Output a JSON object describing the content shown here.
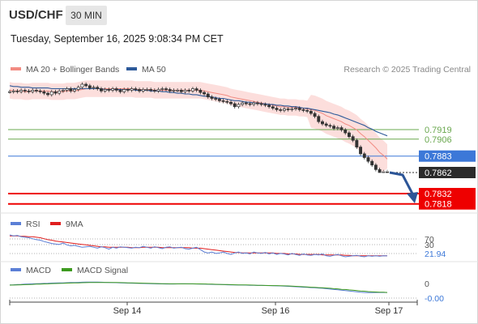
{
  "header": {
    "symbol": "USD/CHF",
    "timeframe": "30 MIN",
    "datetime": "Tuesday, September 16, 2025 9:08:34 PM CET"
  },
  "legend": {
    "bollinger": {
      "label": "MA 20 + Bollinger Bands",
      "color": "#f28b82"
    },
    "ma50": {
      "label": "MA 50",
      "color": "#2d5a9a"
    },
    "credit": "Research © 2025 Trading Central"
  },
  "rsi_legend": {
    "rsi": {
      "label": "RSI",
      "color": "#5b7fd6"
    },
    "ma9": {
      "label": "9MA",
      "color": "#e01e1e"
    }
  },
  "macd_legend": {
    "macd": {
      "label": "MACD",
      "color": "#5b7fd6"
    },
    "signal": {
      "label": "MACD Signal",
      "color": "#3d9a1f"
    }
  },
  "chart_data": [
    {
      "type": "candlestick",
      "panel": "price",
      "title": "USD/CHF 30 MIN",
      "ylim": [
        0.7812,
        0.7945
      ],
      "last_price": 0.7862,
      "levels": [
        {
          "value": 0.7919,
          "label": "0.7919",
          "style": "resistance",
          "color": "#6aa84f"
        },
        {
          "value": 0.7906,
          "label": "0.7906",
          "style": "resistance",
          "color": "#6aa84f"
        },
        {
          "value": 0.7883,
          "label": "0.7883",
          "style": "pivot",
          "color": "#3c78d8"
        },
        {
          "value": 0.7832,
          "label": "0.7832",
          "style": "support",
          "color": "#ee0000"
        },
        {
          "value": 0.7818,
          "label": "0.7818",
          "style": "support",
          "color": "#ee0000"
        }
      ],
      "projection": {
        "from": 0.7862,
        "to": 0.7832,
        "direction": "down",
        "color": "#2c5597"
      },
      "x_ticks": [
        "Sep 14",
        "Sep 16",
        "Sep 17"
      ],
      "close": [
        0.797,
        0.7971,
        0.797,
        0.7972,
        0.7971,
        0.797,
        0.7972,
        0.7971,
        0.797,
        0.7968,
        0.7966,
        0.797,
        0.7968,
        0.7971,
        0.7972,
        0.7974,
        0.7971,
        0.7973,
        0.7976,
        0.798,
        0.7978,
        0.7975,
        0.7976,
        0.7974,
        0.7971,
        0.7973,
        0.7972,
        0.7974,
        0.7972,
        0.797,
        0.7973,
        0.7972,
        0.7974,
        0.7973,
        0.7971,
        0.7973,
        0.7973,
        0.7972,
        0.7971,
        0.7973,
        0.7974,
        0.7973,
        0.7971,
        0.7972,
        0.7972,
        0.797,
        0.7972,
        0.7971,
        0.7974,
        0.7972,
        0.7969,
        0.7967,
        0.7963,
        0.7961,
        0.796,
        0.7958,
        0.7957,
        0.7956,
        0.7954,
        0.795,
        0.7953,
        0.7955,
        0.7954,
        0.7953,
        0.7955,
        0.7954,
        0.7953,
        0.7952,
        0.795,
        0.7948,
        0.7946,
        0.7945,
        0.7947,
        0.7946,
        0.7947,
        0.7948,
        0.7946,
        0.7945,
        0.7944,
        0.7941,
        0.7937,
        0.793,
        0.7927,
        0.7925,
        0.7924,
        0.7921,
        0.7922,
        0.7919,
        0.7915,
        0.791,
        0.7905,
        0.7896,
        0.7887,
        0.7882,
        0.7877,
        0.7872,
        0.7866,
        0.7862,
        0.7863,
        0.7862
      ],
      "ma20": [
        0.7972,
        0.7971,
        0.7971,
        0.7971,
        0.797,
        0.797,
        0.7971,
        0.7971,
        0.7971,
        0.7971,
        0.7971,
        0.797,
        0.797,
        0.797,
        0.797,
        0.7971,
        0.7971,
        0.7971,
        0.7972,
        0.7973,
        0.7974,
        0.7974,
        0.7974,
        0.7974,
        0.7974,
        0.7974,
        0.7974,
        0.7974,
        0.7974,
        0.7974,
        0.7974,
        0.7974,
        0.7974,
        0.7973,
        0.7973,
        0.7973,
        0.7973,
        0.7973,
        0.7972,
        0.7972,
        0.7972,
        0.7972,
        0.7972,
        0.7972,
        0.7972,
        0.7972,
        0.7972,
        0.7972,
        0.7972,
        0.7972,
        0.7972,
        0.7971,
        0.797,
        0.7969,
        0.7968,
        0.7967,
        0.7966,
        0.7965,
        0.7963,
        0.7962,
        0.7961,
        0.796,
        0.7959,
        0.7958,
        0.7957,
        0.7956,
        0.7955,
        0.7954,
        0.7953,
        0.7952,
        0.7951,
        0.795,
        0.795,
        0.7949,
        0.7949,
        0.7949,
        0.7948,
        0.7948,
        0.7947,
        0.7946,
        0.7945,
        0.7943,
        0.7941,
        0.7938,
        0.7936,
        0.7934,
        0.7932,
        0.793,
        0.7927,
        0.7925,
        0.7922,
        0.7919,
        0.7914,
        0.791,
        0.7905,
        0.79,
        0.7895,
        0.7889,
        0.7885,
        0.788
      ],
      "ma50": [
        0.7978,
        0.7977,
        0.7977,
        0.7976,
        0.7976,
        0.7976,
        0.7975,
        0.7975,
        0.7975,
        0.7975,
        0.7975,
        0.7974,
        0.7974,
        0.7974,
        0.7974,
        0.7974,
        0.7974,
        0.7974,
        0.7974,
        0.7974,
        0.7974,
        0.7974,
        0.7974,
        0.7974,
        0.7974,
        0.7973,
        0.7973,
        0.7973,
        0.7973,
        0.7973,
        0.7973,
        0.7973,
        0.7973,
        0.7972,
        0.7972,
        0.7972,
        0.7972,
        0.7971,
        0.7971,
        0.7971,
        0.797,
        0.797,
        0.7969,
        0.7969,
        0.7968,
        0.7968,
        0.7967,
        0.7967,
        0.7966,
        0.7966,
        0.7965,
        0.7964,
        0.7964,
        0.7963,
        0.7962,
        0.7961,
        0.7961,
        0.796,
        0.7959,
        0.7958,
        0.7958,
        0.7957,
        0.7956,
        0.7956,
        0.7955,
        0.7955,
        0.7954,
        0.7954,
        0.7953,
        0.7953,
        0.7952,
        0.7952,
        0.7951,
        0.7951,
        0.795,
        0.795,
        0.7949,
        0.7948,
        0.7948,
        0.7947,
        0.7946,
        0.7945,
        0.7944,
        0.7943,
        0.7942,
        0.794,
        0.7939,
        0.7937,
        0.7935,
        0.7933,
        0.7931,
        0.7929,
        0.7927,
        0.7925,
        0.7922,
        0.792,
        0.7917,
        0.7915,
        0.7913,
        0.7911
      ]
    },
    {
      "type": "line",
      "panel": "rsi",
      "ylim": [
        0,
        100
      ],
      "levels": [
        {
          "value": 70,
          "label": "70"
        },
        {
          "value": 30,
          "label": "30"
        }
      ],
      "last_value": 21.94,
      "last_label": "21.94",
      "series": [
        {
          "name": "RSI",
          "color": "#5b7fd6",
          "values": [
            66,
            64,
            65,
            62,
            61,
            60,
            58,
            56,
            55,
            52,
            50,
            48,
            47,
            46,
            49,
            45,
            43,
            44,
            42,
            40,
            41,
            42,
            40,
            38,
            41,
            39,
            36,
            40,
            38,
            41,
            40,
            39,
            38,
            40,
            39,
            42,
            40,
            38,
            41,
            39,
            37,
            40,
            41,
            38,
            39,
            40,
            37,
            36,
            38,
            40,
            35,
            30,
            28,
            30,
            27,
            28,
            30,
            27,
            25,
            28,
            30,
            27,
            28,
            26,
            30,
            28,
            27,
            29,
            26,
            28,
            25,
            27,
            26,
            24,
            27,
            25,
            23,
            26,
            24,
            23,
            25,
            24,
            26,
            22,
            21,
            23,
            25,
            22,
            20,
            21,
            22,
            23,
            21,
            20,
            22,
            21,
            22,
            21,
            22,
            21.94
          ]
        },
        {
          "name": "9MA",
          "color": "#e01e1e",
          "values": [
            64,
            64,
            64,
            63,
            63,
            62,
            62,
            61,
            60,
            58,
            56,
            55,
            53,
            52,
            51,
            50,
            49,
            48,
            47,
            46,
            45,
            44,
            43,
            42,
            41,
            41,
            40,
            40,
            40,
            40,
            40,
            40,
            39,
            39,
            39,
            40,
            40,
            40,
            40,
            40,
            39,
            39,
            39,
            39,
            39,
            39,
            39,
            39,
            38,
            38,
            38,
            37,
            36,
            35,
            34,
            33,
            32,
            31,
            30,
            29,
            29,
            28,
            28,
            28,
            28,
            28,
            28,
            28,
            28,
            28,
            27,
            27,
            27,
            26,
            26,
            26,
            25,
            25,
            25,
            25,
            25,
            25,
            24,
            24,
            24,
            24,
            24,
            24,
            23,
            23,
            22,
            22,
            22,
            22,
            22,
            22,
            22,
            22,
            22,
            22
          ]
        }
      ]
    },
    {
      "type": "line",
      "panel": "macd",
      "ylim": [
        -0.0003,
        0.0006
      ],
      "zero_label": "0",
      "last_label": "-0.00",
      "series": [
        {
          "name": "MACD",
          "color": "#5b7fd6",
          "values": [
            0.0001,
            0.00012,
            0.00015,
            0.00016,
            0.00018,
            0.0002,
            0.00022,
            0.00023,
            0.00024,
            0.00026,
            0.00027,
            0.00029,
            0.0003,
            0.00031,
            0.00032,
            0.00033,
            0.00035,
            0.00036,
            0.00037,
            0.00038,
            0.00039,
            0.0004,
            0.0004,
            0.00039,
            0.00038,
            0.00037,
            0.00036,
            0.00034,
            0.00033,
            0.00032,
            0.0003,
            0.00029,
            0.00028,
            0.00027,
            0.00026,
            0.00025,
            0.00024,
            0.00023,
            0.00022,
            0.00021,
            0.00021,
            0.0002,
            0.0002,
            0.0002,
            0.00021,
            0.00022,
            0.00022,
            0.00021,
            0.00021,
            0.0002,
            0.00019,
            0.00018,
            0.00017,
            0.00016,
            0.00015,
            0.00014,
            0.00013,
            0.00012,
            0.00011,
            0.0001,
            9e-05,
            9e-05,
            8e-05,
            7e-05,
            6e-05,
            5e-05,
            5e-05,
            4e-05,
            3e-05,
            2e-05,
            1e-05,
            0.0,
            -1e-05,
            -2e-05,
            -3e-05,
            -4e-05,
            -5e-05,
            -6e-05,
            -7e-05,
            -8e-05,
            -9e-05,
            -0.0001,
            -0.00011,
            -0.00013,
            -0.00015,
            -0.00017,
            -0.00018,
            -0.0002,
            -0.00022,
            -0.00024,
            -0.00026,
            -0.00028,
            -0.0003,
            -0.00031,
            -0.00032,
            -0.00032,
            -0.00031,
            -0.00031,
            -0.00031,
            -0.00031
          ]
        },
        {
          "name": "MACD Signal",
          "color": "#3d9a1f",
          "values": [
            8e-05,
            9e-05,
            0.0001,
            0.00012,
            0.00013,
            0.00015,
            0.00016,
            0.00018,
            0.00019,
            0.00021,
            0.00022,
            0.00024,
            0.00025,
            0.00026,
            0.00027,
            0.00029,
            0.0003,
            0.00031,
            0.00032,
            0.00033,
            0.00034,
            0.00035,
            0.00036,
            0.00036,
            0.00036,
            0.00036,
            0.00036,
            0.00035,
            0.00035,
            0.00034,
            0.00033,
            0.00032,
            0.00031,
            0.0003,
            0.00029,
            0.00028,
            0.00027,
            0.00026,
            0.00025,
            0.00024,
            0.00023,
            0.00023,
            0.00022,
            0.00022,
            0.00022,
            0.00022,
            0.00022,
            0.00022,
            0.00022,
            0.00021,
            0.00021,
            0.0002,
            0.00019,
            0.00018,
            0.00017,
            0.00016,
            0.00015,
            0.00014,
            0.00013,
            0.00012,
            0.00011,
            0.00011,
            0.0001,
            9e-05,
            8e-05,
            7e-05,
            6e-05,
            5e-05,
            4e-05,
            3e-05,
            3e-05,
            2e-05,
            1e-05,
            0.0,
            -1e-05,
            -2e-05,
            -3e-05,
            -4e-05,
            -5e-05,
            -6e-05,
            -7e-05,
            -8e-05,
            -9e-05,
            -0.0001,
            -0.00011,
            -0.00013,
            -0.00014,
            -0.00016,
            -0.00017,
            -0.00019,
            -0.0002,
            -0.00022,
            -0.00024,
            -0.00025,
            -0.00027,
            -0.00028,
            -0.00029,
            -0.0003,
            -0.0003,
            -0.00031
          ]
        }
      ]
    }
  ]
}
